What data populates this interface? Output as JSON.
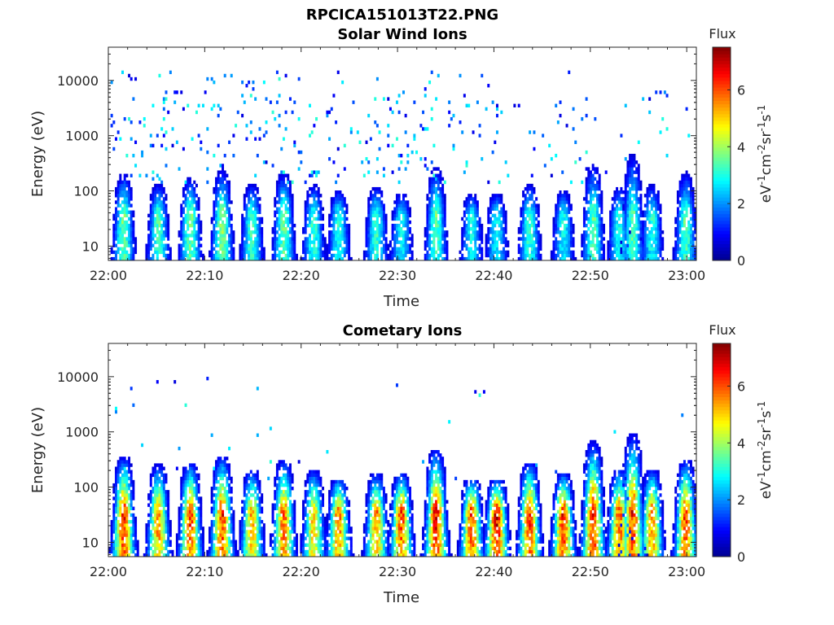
{
  "figure": {
    "suptitle": "RPCICA151013T22.PNG"
  },
  "colors": {
    "colormap": [
      "#00008f",
      "#0000ff",
      "#0080ff",
      "#00ffff",
      "#80ff80",
      "#ffff00",
      "#ff8000",
      "#ff0000",
      "#800000"
    ],
    "axis": "#262626",
    "background": "#ffffff"
  },
  "chart_data": [
    {
      "type": "heatmap",
      "title": "Solar Wind Ions",
      "xlabel": "Time",
      "ylabel": "Energy (eV)",
      "x_ticks": [
        "22:00",
        "22:10",
        "22:20",
        "22:30",
        "22:40",
        "22:50",
        "23:00"
      ],
      "x_range_minutes": [
        0,
        61
      ],
      "y_scale": "log",
      "y_ticks": [
        10,
        100,
        1000,
        10000
      ],
      "y_tick_labels": [
        "10",
        "100",
        "1000",
        "10000"
      ],
      "y_range": [
        5.5,
        40000
      ],
      "colorbar": {
        "title": "Flux",
        "label": "eV-1cm-2sr-1s-1",
        "label_base": [
          "eV",
          "cm",
          "sr",
          "s"
        ],
        "label_sup": [
          "-1",
          "-2",
          "-1",
          "-1"
        ],
        "ticks": [
          "0",
          "2",
          "4",
          "6"
        ],
        "range": [
          0,
          7.5
        ]
      },
      "bursts": [
        {
          "t": 1.6,
          "fmax": 3.8,
          "emax": 150
        },
        {
          "t": 5.2,
          "fmax": 3.6,
          "emax": 90
        },
        {
          "t": 8.5,
          "fmax": 3.8,
          "emax": 120
        },
        {
          "t": 11.8,
          "fmax": 4.0,
          "emax": 180
        },
        {
          "t": 14.9,
          "fmax": 3.5,
          "emax": 90
        },
        {
          "t": 18.2,
          "fmax": 3.8,
          "emax": 160
        },
        {
          "t": 21.3,
          "fmax": 3.4,
          "emax": 90
        },
        {
          "t": 23.9,
          "fmax": 3.2,
          "emax": 70
        },
        {
          "t": 27.8,
          "fmax": 3.4,
          "emax": 80
        },
        {
          "t": 30.4,
          "fmax": 3.0,
          "emax": 60
        },
        {
          "t": 34.0,
          "fmax": 3.6,
          "emax": 220
        },
        {
          "t": 37.7,
          "fmax": 3.0,
          "emax": 60
        },
        {
          "t": 40.3,
          "fmax": 3.0,
          "emax": 60
        },
        {
          "t": 43.7,
          "fmax": 3.4,
          "emax": 90
        },
        {
          "t": 47.2,
          "fmax": 3.0,
          "emax": 70
        },
        {
          "t": 50.3,
          "fmax": 3.6,
          "emax": 250
        },
        {
          "t": 53.0,
          "fmax": 3.2,
          "emax": 80
        },
        {
          "t": 54.4,
          "fmax": 3.6,
          "emax": 400
        },
        {
          "t": 56.4,
          "fmax": 3.2,
          "emax": 90
        },
        {
          "t": 59.9,
          "fmax": 3.6,
          "emax": 160
        }
      ],
      "scatter_density": [
        0.55,
        0.55,
        0.5,
        0.45,
        0.3,
        0.15,
        0.08
      ]
    },
    {
      "type": "heatmap",
      "title": "Cometary Ions",
      "xlabel": "Time",
      "ylabel": "Energy (eV)",
      "x_ticks": [
        "22:00",
        "22:10",
        "22:20",
        "22:30",
        "22:40",
        "22:50",
        "23:00"
      ],
      "x_range_minutes": [
        0,
        61
      ],
      "y_scale": "log",
      "y_ticks": [
        10,
        100,
        1000,
        10000
      ],
      "y_tick_labels": [
        "10",
        "100",
        "1000",
        "10000"
      ],
      "y_range": [
        5.5,
        40000
      ],
      "colorbar": {
        "title": "Flux",
        "label": "eV-1cm-2sr-1s-1",
        "label_base": [
          "eV",
          "cm",
          "sr",
          "s"
        ],
        "label_sup": [
          "-1",
          "-2",
          "-1",
          "-1"
        ],
        "ticks": [
          "0",
          "2",
          "4",
          "6"
        ],
        "range": [
          0,
          7.5
        ]
      },
      "bursts": [
        {
          "t": 1.6,
          "fmax": 6.4,
          "emax": 250
        },
        {
          "t": 5.2,
          "fmax": 5.6,
          "emax": 180
        },
        {
          "t": 8.5,
          "fmax": 6.2,
          "emax": 200
        },
        {
          "t": 11.8,
          "fmax": 6.4,
          "emax": 260
        },
        {
          "t": 14.9,
          "fmax": 5.4,
          "emax": 150
        },
        {
          "t": 18.2,
          "fmax": 6.0,
          "emax": 220
        },
        {
          "t": 21.3,
          "fmax": 5.2,
          "emax": 150
        },
        {
          "t": 23.9,
          "fmax": 5.8,
          "emax": 100
        },
        {
          "t": 27.8,
          "fmax": 5.6,
          "emax": 120
        },
        {
          "t": 30.4,
          "fmax": 6.2,
          "emax": 120
        },
        {
          "t": 34.0,
          "fmax": 6.8,
          "emax": 350
        },
        {
          "t": 37.7,
          "fmax": 6.2,
          "emax": 100
        },
        {
          "t": 40.3,
          "fmax": 6.8,
          "emax": 90
        },
        {
          "t": 43.7,
          "fmax": 6.4,
          "emax": 200
        },
        {
          "t": 47.2,
          "fmax": 6.4,
          "emax": 120
        },
        {
          "t": 50.3,
          "fmax": 6.6,
          "emax": 500
        },
        {
          "t": 53.0,
          "fmax": 6.0,
          "emax": 150
        },
        {
          "t": 54.4,
          "fmax": 6.4,
          "emax": 700
        },
        {
          "t": 56.4,
          "fmax": 5.8,
          "emax": 150
        },
        {
          "t": 59.9,
          "fmax": 6.2,
          "emax": 220
        }
      ],
      "scatter_density": [
        0.06,
        0.06,
        0.05,
        0.03,
        0.01,
        0.01,
        0.005
      ]
    }
  ]
}
